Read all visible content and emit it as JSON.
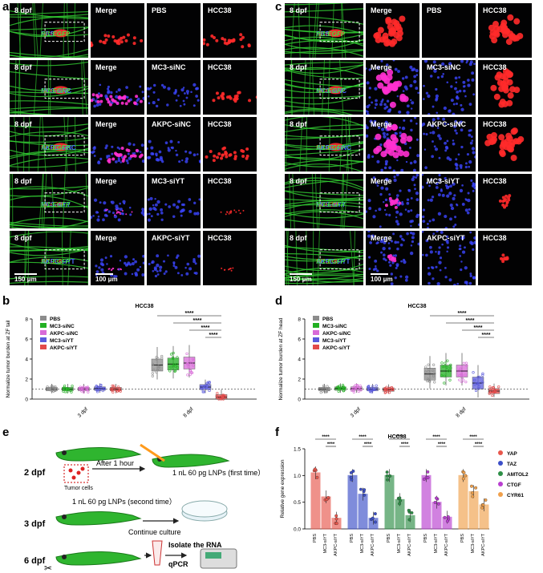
{
  "panel_labels": {
    "a": "a",
    "b": "b",
    "c": "c",
    "d": "d",
    "e": "e",
    "f": "f"
  },
  "panel_a": {
    "rows": [
      {
        "stage": "8 dpf",
        "labels": [
          "HCC38",
          "PBS",
          "fli1:EGFP"
        ],
        "columns": [
          "Merge",
          "PBS",
          "HCC38"
        ]
      },
      {
        "stage": "8 dpf",
        "labels": [
          "HCC38",
          "MC3-siNC",
          "fli1:EGFP"
        ],
        "columns": [
          "Merge",
          "MC3-siNC",
          "HCC38"
        ]
      },
      {
        "stage": "8 dpf",
        "labels": [
          "HCC38",
          "AKPC-siNC",
          "fli1:EGFP"
        ],
        "columns": [
          "Merge",
          "AKPC-siNC",
          "HCC38"
        ]
      },
      {
        "stage": "8 dpf",
        "labels": [
          "HCC38",
          "MC3-siYT",
          "fli1:EGFP"
        ],
        "columns": [
          "Merge",
          "MC3-siYT",
          "HCC38"
        ]
      },
      {
        "stage": "8 dpf",
        "labels": [
          "HCC38",
          "AKPC-siYT",
          "fli1:EGFP"
        ],
        "columns": [
          "Merge",
          "AKPC-siYT",
          "HCC38"
        ]
      }
    ],
    "scale_left": "150 μm",
    "scale_right": "100 μm"
  },
  "panel_c": {
    "rows": [
      {
        "stage": "8 dpf",
        "labels": [
          "HCC38",
          "PBS",
          "fli1:EGFP"
        ],
        "columns": [
          "Merge",
          "PBS",
          "HCC38"
        ]
      },
      {
        "stage": "8 dpf",
        "labels": [
          "HCC38",
          "MC3-siNC",
          "fli1:EGFP"
        ],
        "columns": [
          "Merge",
          "MC3-siNC",
          "HCC38"
        ]
      },
      {
        "stage": "8 dpf",
        "labels": [
          "HCC38",
          "AKPC-siNC",
          "fli1:EGFP"
        ],
        "columns": [
          "Merge",
          "AKPC-siNC",
          "HCC38"
        ]
      },
      {
        "stage": "8 dpf",
        "labels": [
          "HCC38",
          "MC3-siYT",
          "fli1:EGFP"
        ],
        "columns": [
          "Merge",
          "MC3-siYT",
          "HCC38"
        ]
      },
      {
        "stage": "8 dpf",
        "labels": [
          "HCC38",
          "AKPC-siYT",
          "fli1:EGFP"
        ],
        "columns": [
          "Merge",
          "AKPC-siYT",
          "HCC38"
        ]
      }
    ],
    "scale_left": "150 μm",
    "scale_right": "100 μm"
  },
  "panel_b": {
    "title": "HCC38",
    "ylabel": "Normalize tumor burden at ZF tail",
    "legend": [
      "PBS",
      "MC3-siNC",
      "AKPC-siNC",
      "MC3-siYT",
      "AKPC-siYT"
    ],
    "colors": [
      "#8c8c8c",
      "#22b022",
      "#d86ad8",
      "#5a5adc",
      "#e24a4a"
    ],
    "groups": [
      "3 dpf",
      "8 dpf"
    ],
    "yticks": [
      "0",
      "2",
      "4",
      "6",
      "8"
    ],
    "medians_3dpf": [
      1.0,
      1.0,
      1.0,
      1.05,
      1.0
    ],
    "medians_8dpf": [
      3.4,
      3.5,
      3.6,
      1.2,
      0.2
    ],
    "sig": [
      "****",
      "****",
      "****",
      "****"
    ]
  },
  "panel_d": {
    "title": "HCC38",
    "ylabel": "Normalize tumor burden at ZF head",
    "legend": [
      "PBS",
      "MC3-siNC",
      "AKPC-siNC",
      "MC3-siYT",
      "AKPC-siYT"
    ],
    "colors": [
      "#8c8c8c",
      "#22b022",
      "#d86ad8",
      "#5a5adc",
      "#e24a4a"
    ],
    "groups": [
      "3 dpf",
      "8 dpf"
    ],
    "yticks": [
      "0",
      "2",
      "4",
      "6",
      "8"
    ],
    "medians_3dpf": [
      1.0,
      1.05,
      1.05,
      1.0,
      0.95
    ],
    "medians_8dpf": [
      2.5,
      2.8,
      2.8,
      1.6,
      0.8
    ],
    "sig": [
      "****",
      "****",
      "****",
      "****"
    ]
  },
  "panel_e": {
    "steps": [
      {
        "day": "2 dpf",
        "note": "After 1 hour",
        "action": "1 nL 60 pg LNPs (first time）",
        "tumor": "Tumor cells"
      },
      {
        "day": "3 dpf",
        "action": "1 nL 60 pg LNPs (second time）",
        "culture": "Continue culture"
      },
      {
        "day": "6 dpf",
        "action": "Isolate the RNA",
        "method": "qPCR"
      }
    ]
  },
  "panel_f": {
    "title": "HCC38",
    "ylabel": "Relative gene expression",
    "yticks": [
      "0.0",
      "0.5",
      "1.0",
      "1.5"
    ],
    "genes": [
      "YAP",
      "TAZ",
      "AMTOL2",
      "CTGF",
      "CYR61"
    ],
    "colors": [
      "#e8574c",
      "#3c4fc8",
      "#2e8f47",
      "#b93fd0",
      "#f0a04b"
    ],
    "conditions": [
      "PBS",
      "MC3-siYT",
      "AKPC-siYT"
    ],
    "chart_data": {
      "type": "bar",
      "categories": [
        "PBS",
        "MC3-siYT",
        "AKPC-siYT"
      ],
      "series": [
        {
          "name": "YAP",
          "values": [
            1.05,
            0.6,
            0.2
          ]
        },
        {
          "name": "TAZ",
          "values": [
            1.0,
            0.65,
            0.2
          ]
        },
        {
          "name": "AMTOL2",
          "values": [
            1.0,
            0.55,
            0.25
          ]
        },
        {
          "name": "CTGF",
          "values": [
            1.0,
            0.5,
            0.22
          ]
        },
        {
          "name": "CYR61",
          "values": [
            1.0,
            0.7,
            0.45
          ]
        }
      ],
      "ylim": [
        0,
        1.5
      ]
    },
    "sig": "****"
  }
}
